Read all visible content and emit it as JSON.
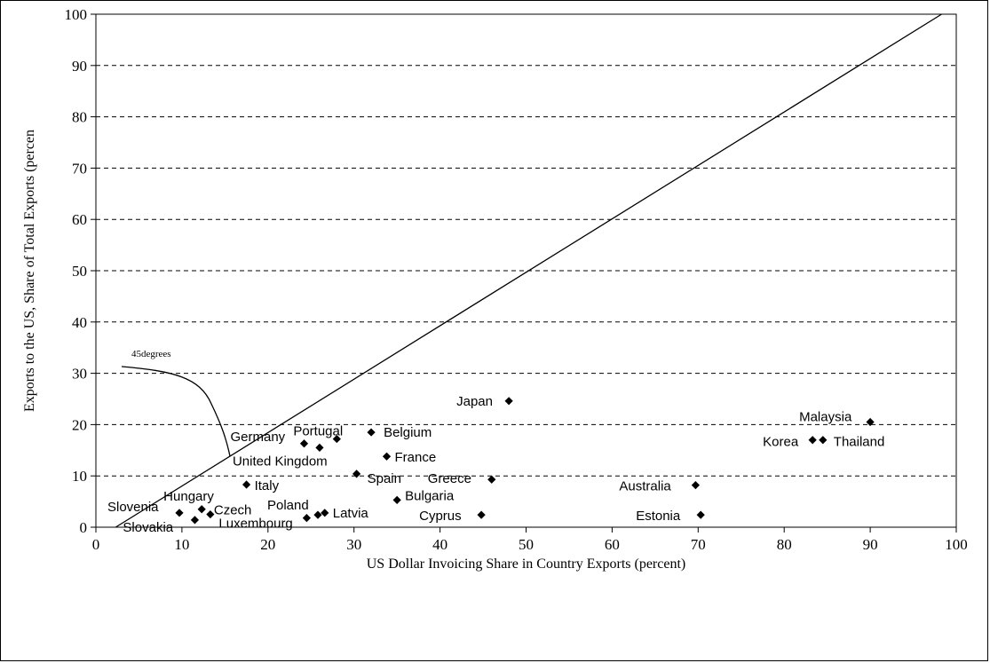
{
  "chart_data": {
    "type": "scatter",
    "title": "",
    "xlabel": "US Dollar Invoicing Share in Country Exports (percent)",
    "ylabel": "Exports to the US, Share of Total Exports (percen",
    "xlim": [
      0,
      100
    ],
    "ylim": [
      0,
      100
    ],
    "x_ticks": [
      "0",
      "10",
      "20",
      "30",
      "40",
      "50",
      "60",
      "70",
      "80",
      "90",
      "100"
    ],
    "y_ticks": [
      "0",
      "10",
      "20",
      "30",
      "40",
      "50",
      "60",
      "70",
      "80",
      "90",
      "100"
    ],
    "grid": "horizontal dashed",
    "marker_color": "#000000",
    "reference_line": {
      "label": "45degrees",
      "from": [
        2.3,
        0
      ],
      "to": [
        98.3,
        100
      ]
    },
    "points": [
      {
        "label": "Slovenia",
        "x": 9.7,
        "y": 2.8
      },
      {
        "label": "Slovakia",
        "x": 11.5,
        "y": 1.4
      },
      {
        "label": "Hungary",
        "x": 12.3,
        "y": 3.5
      },
      {
        "label": "Czech",
        "x": 13.3,
        "y": 2.5
      },
      {
        "label": "Italy",
        "x": 17.5,
        "y": 8.3
      },
      {
        "label": "Germany",
        "x": 24.2,
        "y": 16.3
      },
      {
        "label": "United Kingdom",
        "x": 26.0,
        "y": 15.5
      },
      {
        "label": "Portugal",
        "x": 28.0,
        "y": 17.2
      },
      {
        "label": "Luxembourg",
        "x": 24.5,
        "y": 1.8
      },
      {
        "label": "Poland",
        "x": 25.8,
        "y": 2.4
      },
      {
        "label": "Latvia",
        "x": 26.6,
        "y": 2.8
      },
      {
        "label": "Spain",
        "x": 30.3,
        "y": 10.4
      },
      {
        "label": "Belgium",
        "x": 32.0,
        "y": 18.5
      },
      {
        "label": "France",
        "x": 33.8,
        "y": 13.8
      },
      {
        "label": "Bulgaria",
        "x": 35.0,
        "y": 5.3
      },
      {
        "label": "Cyprus",
        "x": 44.8,
        "y": 2.4
      },
      {
        "label": "Greece",
        "x": 46.0,
        "y": 9.3
      },
      {
        "label": "Japan",
        "x": 48.0,
        "y": 24.6
      },
      {
        "label": "Australia",
        "x": 69.7,
        "y": 8.2
      },
      {
        "label": "Estonia",
        "x": 70.3,
        "y": 2.4
      },
      {
        "label": "Korea",
        "x": 83.3,
        "y": 17.0
      },
      {
        "label": "Thailand",
        "x": 84.5,
        "y": 17.0
      },
      {
        "label": "Malaysia",
        "x": 90.0,
        "y": 20.5
      }
    ]
  }
}
